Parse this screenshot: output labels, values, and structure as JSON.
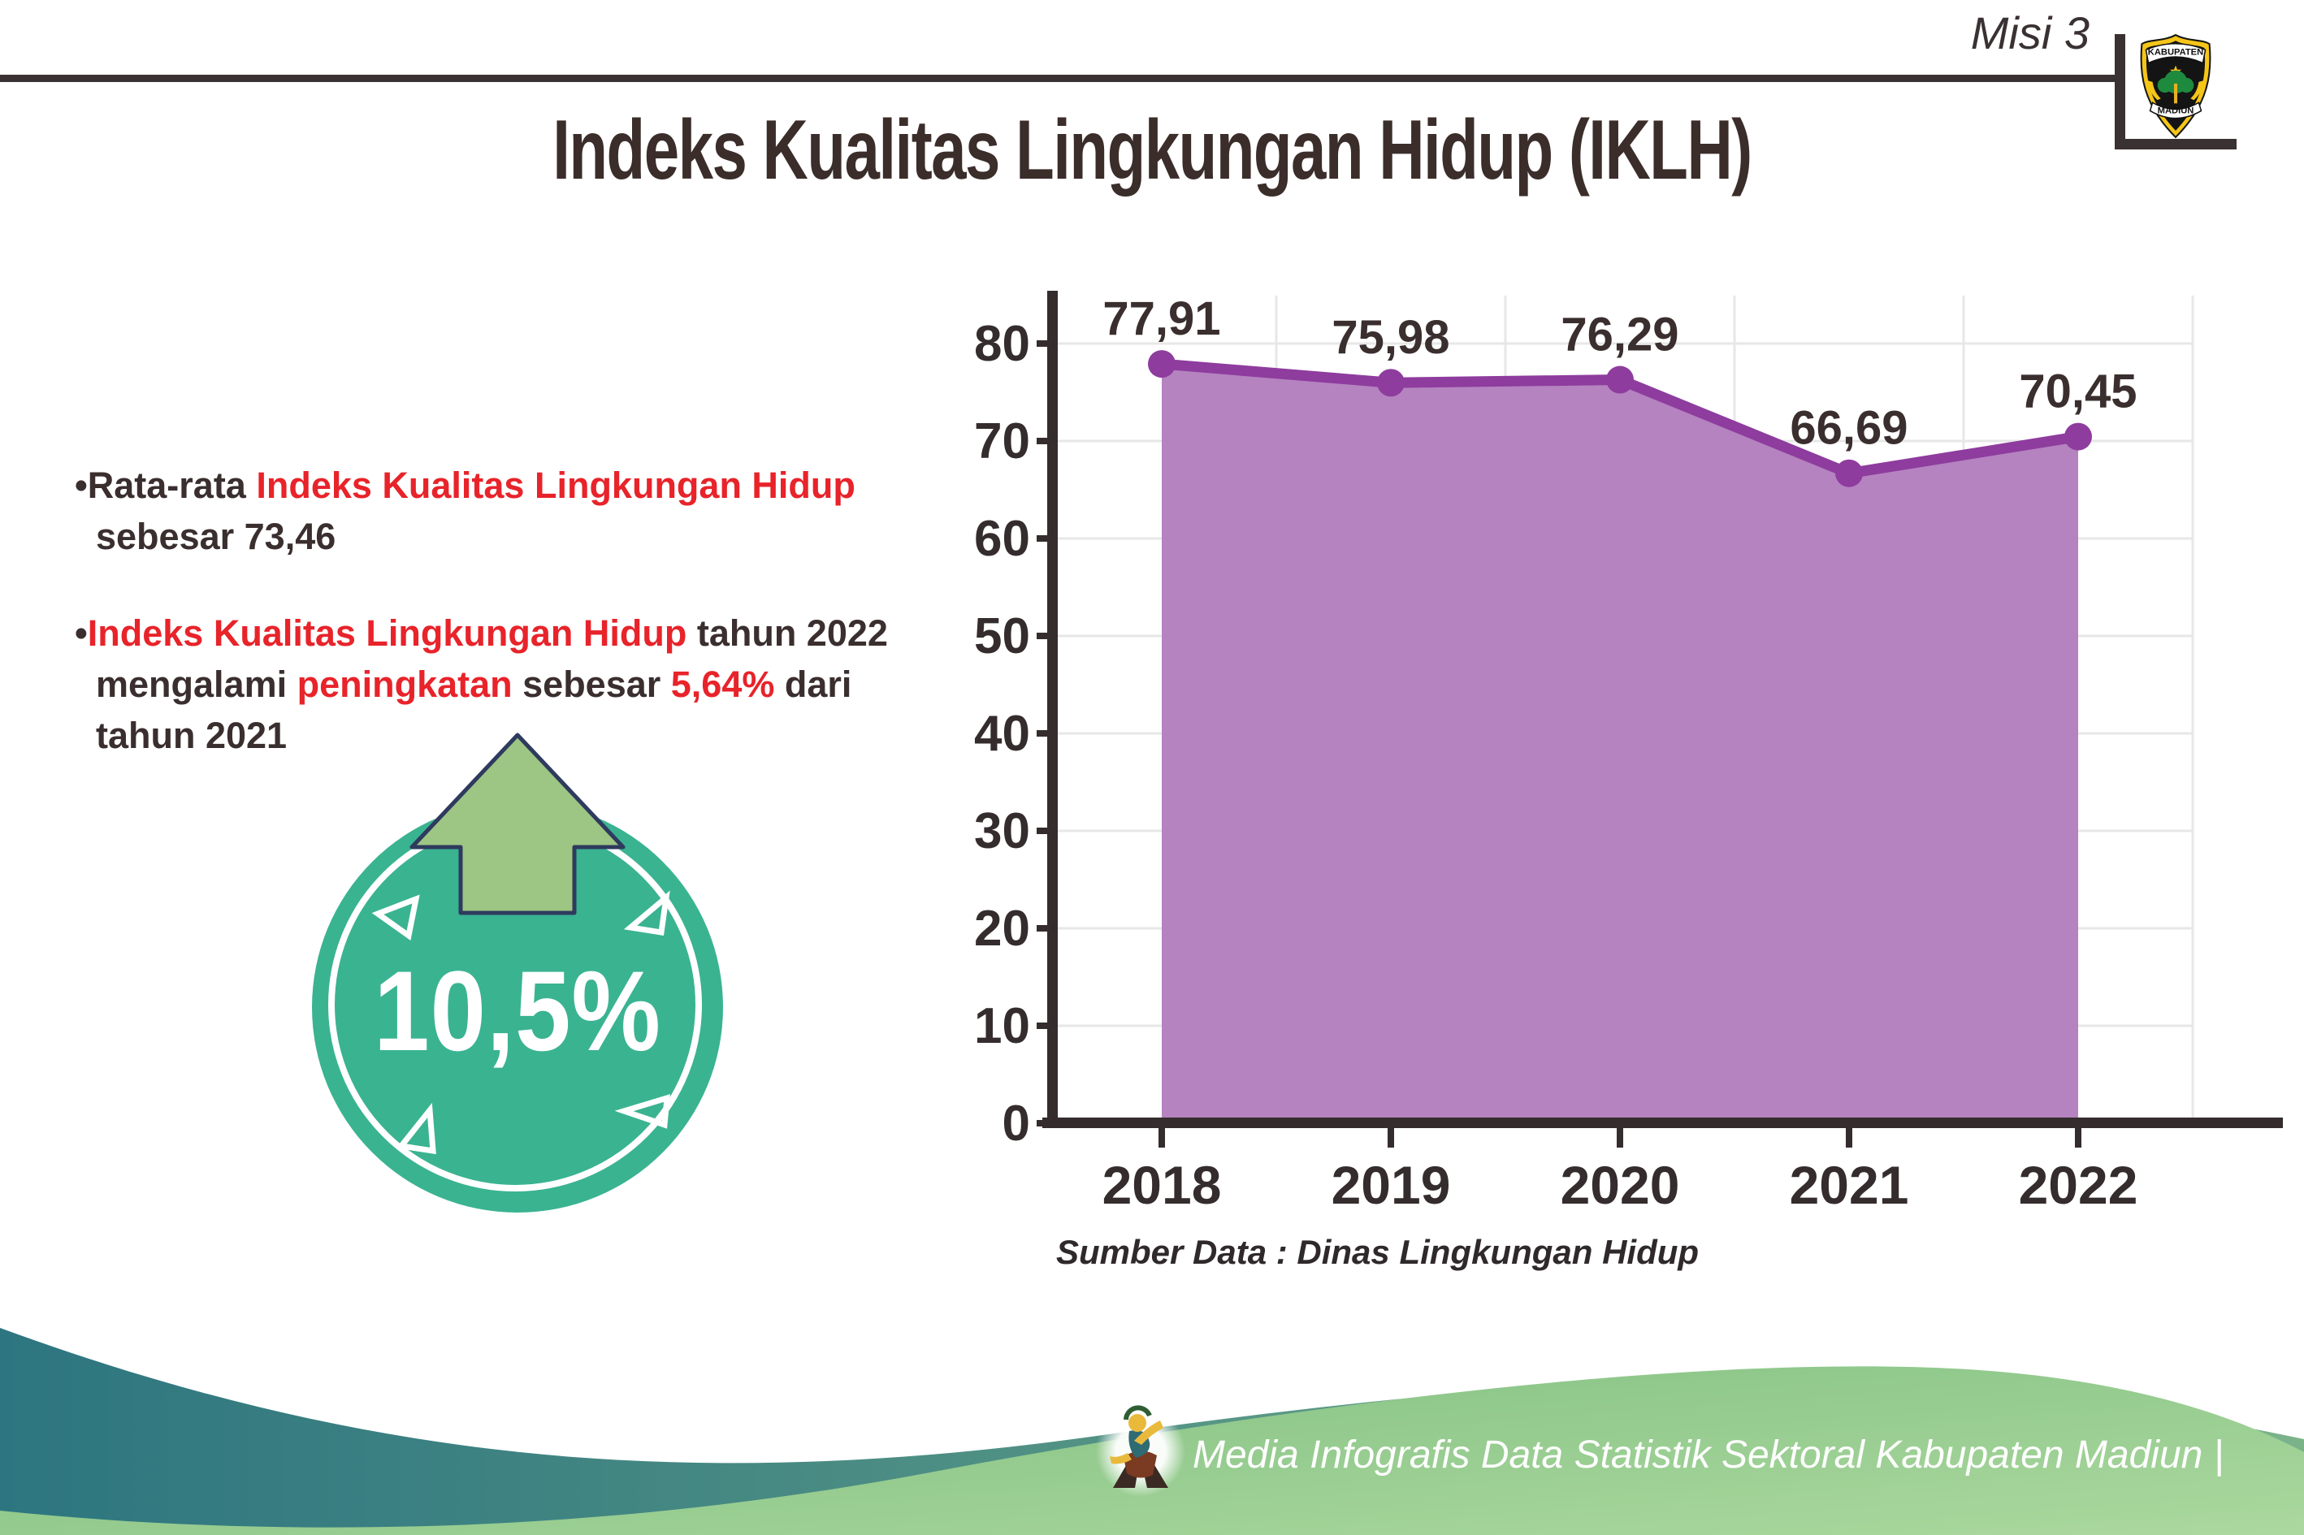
{
  "misi": {
    "label": "Misi 3"
  },
  "title": {
    "text": "Indeks Kualitas Lingkungan Hidup (IKLH)"
  },
  "logo": {
    "top_text": "KABUPATEN",
    "bottom_text": "MADIUN"
  },
  "bullets": [
    {
      "lines": [
        {
          "indent": false,
          "segs": [
            {
              "t": "•Rata-rata ",
              "c": "d"
            },
            {
              "t": "Indeks Kualitas Lingkungan Hidup",
              "c": "r"
            }
          ]
        },
        {
          "indent": true,
          "segs": [
            {
              "t": "sebesar 73,46",
              "c": "d"
            }
          ]
        }
      ]
    },
    {
      "lines": [
        {
          "indent": false,
          "segs": [
            {
              "t": "•",
              "c": "d"
            },
            {
              "t": "Indeks Kualitas Lingkungan Hidup",
              "c": "r"
            },
            {
              "t": " tahun 2022",
              "c": "d"
            }
          ]
        },
        {
          "indent": true,
          "segs": [
            {
              "t": "mengalami ",
              "c": "d"
            },
            {
              "t": "peningkatan",
              "c": "r"
            },
            {
              "t": " sebesar ",
              "c": "d"
            },
            {
              "t": "5,64%",
              "c": "r"
            },
            {
              "t": " dari",
              "c": "d"
            }
          ]
        },
        {
          "indent": true,
          "segs": [
            {
              "t": "tahun 2021",
              "c": "d"
            }
          ]
        }
      ]
    }
  ],
  "badge": {
    "value": "10,5%"
  },
  "chart_data": {
    "type": "area",
    "categories": [
      "2018",
      "2019",
      "2020",
      "2021",
      "2022"
    ],
    "values": [
      77.91,
      75.98,
      76.29,
      66.69,
      70.45
    ],
    "point_labels": [
      "77,91",
      "75,98",
      "76,29",
      "66,69",
      "70,45"
    ],
    "yticks": [
      0,
      10,
      20,
      30,
      40,
      50,
      60,
      70,
      80
    ],
    "ylim": [
      0,
      80
    ],
    "xlabel": "",
    "ylabel": "",
    "grid": true,
    "legend": "none",
    "source": "Sumber Data : Dinas Lingkungan Hidup"
  },
  "footer": {
    "text": "Media Infografis Data Statistik Sektoral Kabupaten Madiun |"
  },
  "colors": {
    "accent_red": "#e8232a",
    "text_dark": "#3a2f2e",
    "area_fill": "#b583c0",
    "area_line": "#8e3c9e",
    "axis": "#342c2d",
    "gridline": "#e7e7e7",
    "badge_teal": "#3ab391",
    "arrow_green": "#9dc583",
    "arrow_outline": "#2e3a5e",
    "footer_teal_left": "#2d7580",
    "footer_teal_right": "#7bb389",
    "footer_green_light": "#abd89e",
    "footer_green_deep": "#7fbe80"
  }
}
